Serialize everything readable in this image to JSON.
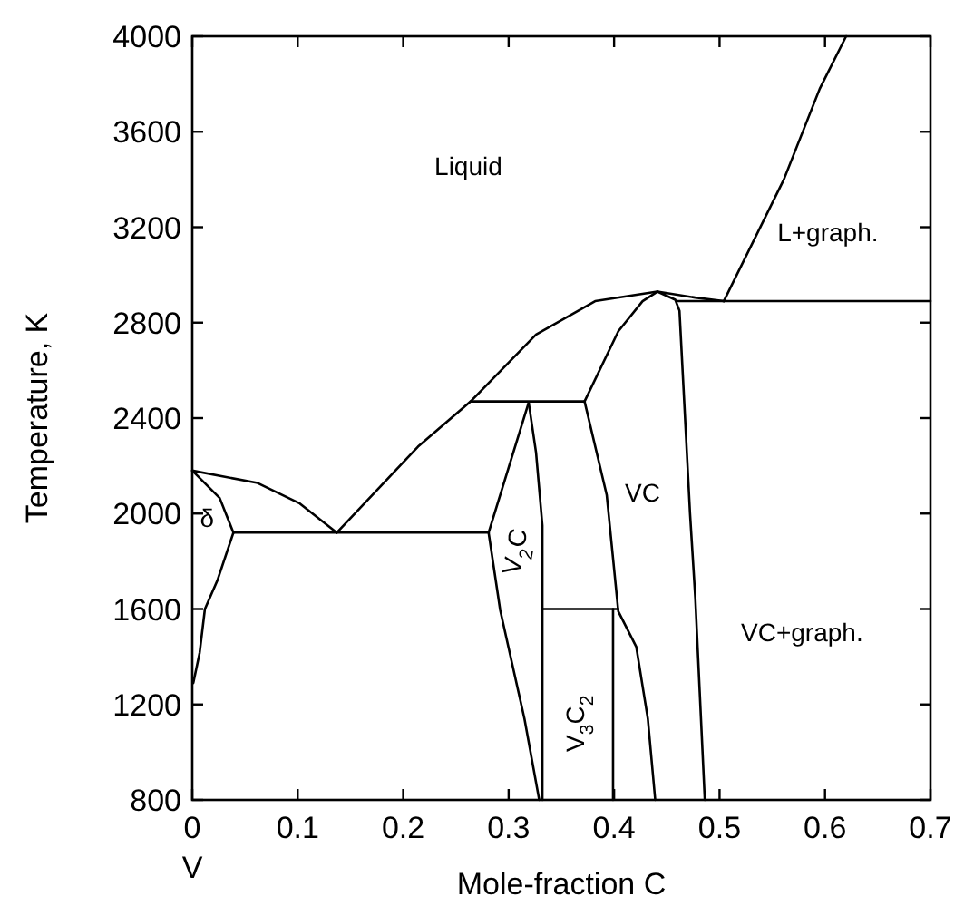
{
  "chart_data": {
    "type": "line",
    "xlabel": "Mole-fraction C",
    "ylabel": "Temperature, K",
    "xlim": [
      0,
      0.7
    ],
    "ylim": [
      800,
      4000
    ],
    "xticks": [
      {
        "value": 0,
        "label": "0\nV"
      },
      0.1,
      0.2,
      0.3,
      0.4,
      0.5,
      0.6,
      0.7
    ],
    "yticks": [
      800,
      1200,
      1600,
      2000,
      2400,
      2800,
      3200,
      3600,
      4000
    ],
    "grid": false,
    "marker": "none",
    "line_style": "solid",
    "series": [
      {
        "color": "#000000",
        "x": [
          0,
          0.062,
          0.102,
          0.137
        ],
        "values": [
          2180,
          2128,
          2042,
          1920
        ]
      },
      {
        "color": "#000000",
        "x": [
          0.137,
          0.214,
          0.264,
          0.326,
          0.382,
          0.441,
          0.477,
          0.504
        ],
        "values": [
          1920,
          2280,
          2470,
          2750,
          2890,
          2930,
          2905,
          2890
        ]
      },
      {
        "color": "#000000",
        "x": [
          0,
          0.026,
          0.039
        ],
        "values": [
          2180,
          2065,
          1920
        ]
      },
      {
        "color": "#000000",
        "x": [
          0.039,
          0.024,
          0.012,
          0.007,
          0.001
        ],
        "values": [
          1920,
          1722,
          1600,
          1417,
          1290
        ]
      },
      {
        "color": "#000000",
        "x": [
          0.039,
          0.281
        ],
        "values": [
          1920,
          1920
        ]
      },
      {
        "color": "#000000",
        "x": [
          0.504,
          0.561,
          0.595,
          0.62
        ],
        "values": [
          2890,
          3400,
          3780,
          4000
        ]
      },
      {
        "color": "#000000",
        "x": [
          0.46,
          0.7
        ],
        "values": [
          2890,
          2890
        ]
      },
      {
        "color": "#000000",
        "x": [
          0.264,
          0.372
        ],
        "values": [
          2470,
          2470
        ]
      },
      {
        "color": "#000000",
        "x": [
          0.319,
          0.281,
          0.292,
          0.315,
          0.329
        ],
        "values": [
          2465,
          1920,
          1595,
          1140,
          800
        ]
      },
      {
        "color": "#000000",
        "x": [
          0.319,
          0.326,
          0.332,
          0.332
        ],
        "values": [
          2465,
          2255,
          1950,
          800
        ]
      },
      {
        "color": "#000000",
        "x": [
          0.332,
          0.404
        ],
        "values": [
          1600,
          1600
        ]
      },
      {
        "color": "#000000",
        "x": [
          0.399,
          0.399
        ],
        "values": [
          1600,
          800
        ]
      },
      {
        "color": "#000000",
        "x": [
          0.372,
          0.393,
          0.404,
          0.421,
          0.432,
          0.439
        ],
        "values": [
          2470,
          2078,
          1590,
          1442,
          1140,
          800
        ]
      },
      {
        "color": "#000000",
        "x": [
          0.372,
          0.404,
          0.427,
          0.441
        ],
        "values": [
          2470,
          2764,
          2890,
          2930
        ]
      },
      {
        "color": "#000000",
        "x": [
          0.441,
          0.458,
          0.462,
          0.472,
          0.477,
          0.486
        ],
        "values": [
          2930,
          2896,
          2850,
          2000,
          1646,
          800
        ]
      }
    ],
    "annotations": [
      "Liquid",
      "L+graph.",
      "δ",
      "V$_{2}$C",
      "V$_{3}$C$_{2}$",
      "VC",
      "VC+graph."
    ]
  }
}
